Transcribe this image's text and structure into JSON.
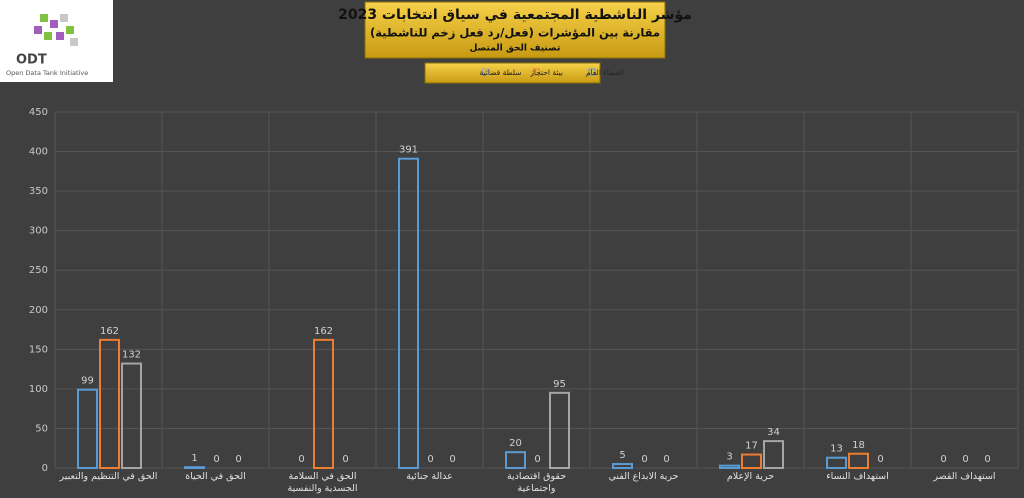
{
  "logo": {
    "title": "ODT",
    "subtitle": "Open Data Tank Initiative"
  },
  "chart_data": {
    "type": "bar",
    "title": "مؤشر الناشطية المجتمعية في سياق انتخابات 2023",
    "subtitle": "مقارنة بين المؤشرات (فعل/رد فعل زخم للناشطية)",
    "subtitle2": "تصنيف الحق المتصل",
    "categories": [
      "الحق في التنظيم والتعبير",
      "الحق في الحياة",
      "الحق في السلامة الجسدية والنفسية",
      "عدالة جنائية",
      "حقوق اقتصادية واجتماعية",
      "حرية الابداع الفني",
      "حرية الإعلام",
      "استهداف النساء",
      "استهداف القصر"
    ],
    "series": [
      {
        "name": "الفضاء العام",
        "color": "#5b9bd5",
        "values": [
          99,
          1,
          0,
          391,
          20,
          5,
          3,
          13,
          0
        ]
      },
      {
        "name": "بيئة احتجاز",
        "color": "#ed7d31",
        "values": [
          162,
          0,
          162,
          0,
          0,
          0,
          17,
          18,
          0
        ]
      },
      {
        "name": "سلطة قضائية",
        "color": "#a5a5a5",
        "values": [
          132,
          0,
          0,
          0,
          95,
          0,
          34,
          0,
          0
        ]
      }
    ],
    "ylim": [
      0,
      450
    ],
    "yticks": [
      0,
      50,
      100,
      150,
      200,
      250,
      300,
      350,
      400,
      450
    ],
    "grid": true,
    "legend": "top"
  }
}
